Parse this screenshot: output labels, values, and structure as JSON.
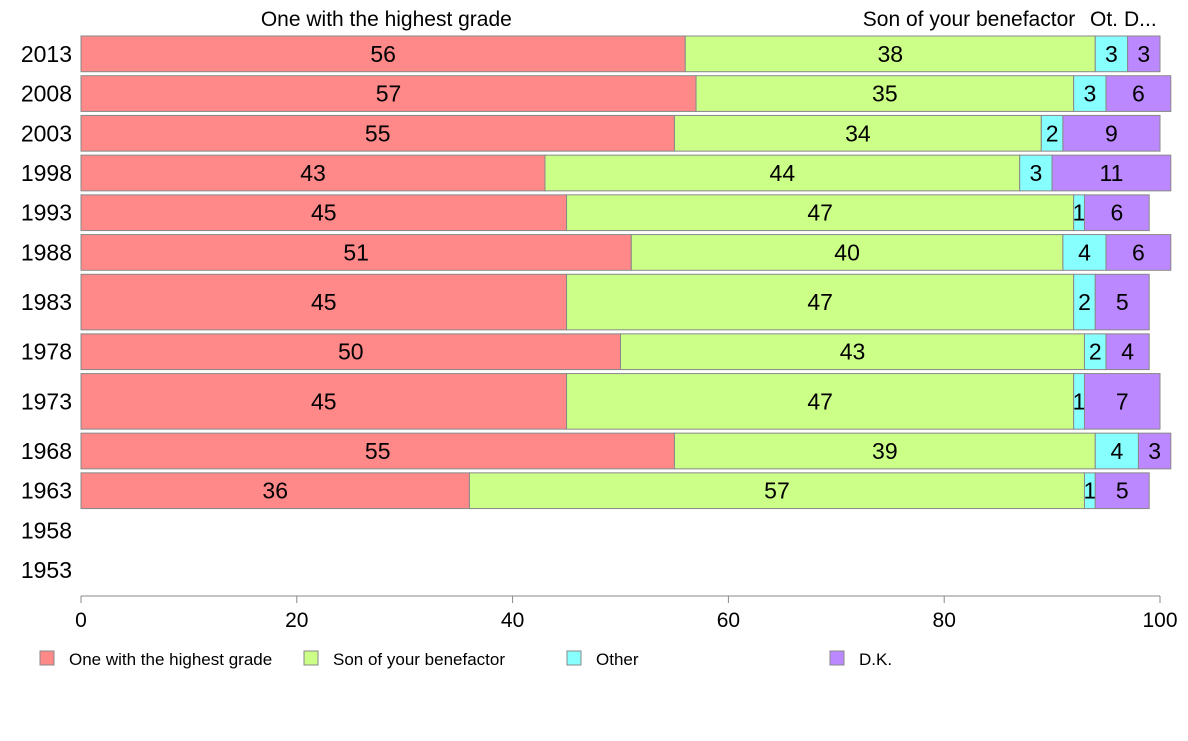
{
  "chart_data": {
    "type": "bar",
    "orientation": "horizontal",
    "stacked": true,
    "categories": [
      "2013",
      "2008",
      "2003",
      "1998",
      "1993",
      "1988",
      "1983",
      "1978",
      "1973",
      "1968",
      "1963",
      "1958",
      "1953"
    ],
    "series": [
      {
        "name": "One with the highest grade",
        "header_label": "One with the highest grade",
        "color": "#ff8888",
        "values": [
          56,
          57,
          55,
          43,
          45,
          51,
          45,
          50,
          45,
          55,
          36,
          null,
          null
        ]
      },
      {
        "name": "Son of your benefactor",
        "header_label": "Son of your benefactor",
        "color": "#ccff88",
        "values": [
          38,
          35,
          34,
          44,
          47,
          40,
          47,
          43,
          47,
          39,
          57,
          null,
          null
        ]
      },
      {
        "name": "Other",
        "header_label": "Ot.",
        "color": "#88ffff",
        "values": [
          3,
          3,
          2,
          3,
          1,
          4,
          2,
          2,
          1,
          4,
          1,
          null,
          null
        ]
      },
      {
        "name": "D.K.",
        "header_label": "D...",
        "color": "#bb88ff",
        "values": [
          3,
          6,
          9,
          11,
          6,
          6,
          5,
          4,
          7,
          3,
          5,
          null,
          null
        ]
      }
    ],
    "relative_sample_size": [
      1,
      1,
      1,
      1,
      1,
      1,
      1.5,
      1,
      1.5,
      1,
      1,
      null,
      null
    ],
    "xlim": [
      0,
      100
    ],
    "xticks": [
      0,
      20,
      40,
      60,
      80,
      100
    ],
    "title": "",
    "xlabel": "",
    "ylabel": "",
    "grid": false,
    "legend_position": "bottom"
  }
}
